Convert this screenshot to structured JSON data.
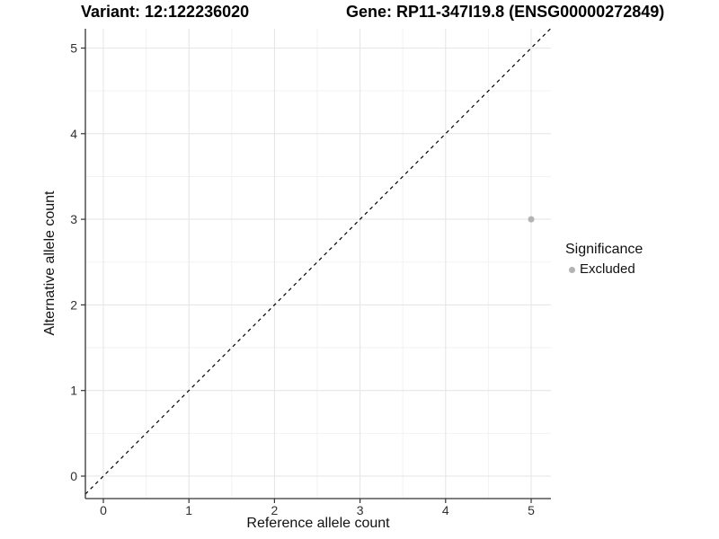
{
  "chart_data": {
    "type": "scatter",
    "titles": {
      "left": "Variant: 12:122236020",
      "right": "Gene: RP11-347I19.8 (ENSG00000272849)"
    },
    "xlabel": "Reference allele count",
    "ylabel": "Alternative allele count",
    "x_ticks": [
      0,
      1,
      2,
      3,
      4,
      5
    ],
    "y_ticks": [
      0,
      1,
      2,
      3,
      4,
      5
    ],
    "xlim": [
      -0.25,
      5.25
    ],
    "ylim": [
      -0.25,
      5.25
    ],
    "grid": {
      "major": true,
      "minor": true
    },
    "points": [
      {
        "x": 5,
        "y": 3,
        "significance": "Excluded",
        "color": "#b3b3b3"
      }
    ],
    "reference_line": {
      "slope": 1,
      "intercept": 0,
      "style": "dashed",
      "color": "#000000"
    },
    "legend": {
      "title": "Significance",
      "position": "right",
      "items": [
        {
          "label": "Excluded",
          "color": "#b3b3b3"
        }
      ]
    },
    "style": {
      "axis_line_color": "#333333",
      "tick_text_color": "#303030",
      "grid_major_color": "#e6e6e6",
      "grid_minor_color": "#f2f2f2",
      "background": "#ffffff"
    }
  }
}
